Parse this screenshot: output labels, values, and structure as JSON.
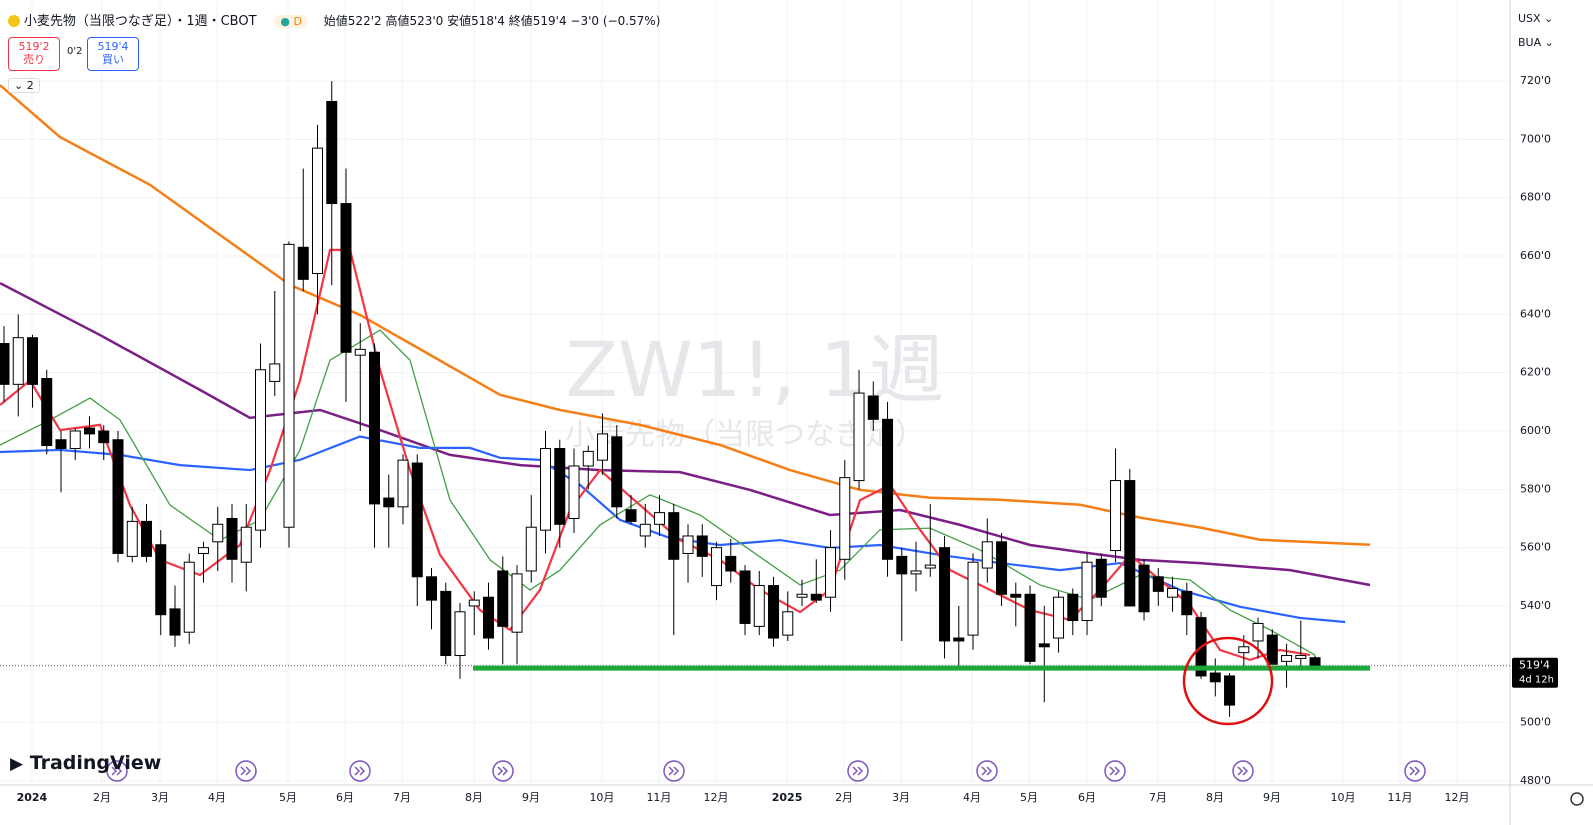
{
  "header": {
    "symbol": "小麦先物（当限つなぎ足）・1週・CBOT",
    "badge": "D",
    "ohlc": "始値522'2 高値523'0 安値518'4 終値519'4 −3'0 (−0.57%)",
    "sell": {
      "price": "519'2",
      "label": "売り"
    },
    "spread": "0'2",
    "buy": {
      "price": "519'4",
      "label": "買い"
    },
    "indicators": "2",
    "currency": "USX",
    "unit": "BUA",
    "brand": "TradingView"
  },
  "chart_data": {
    "type": "candlestick",
    "watermark": {
      "symbol": "ZW1!, 1週",
      "name": "小麦先物（当限つなぎ足）"
    },
    "x": [
      0,
      1,
      2,
      3,
      4,
      5,
      6,
      7,
      8,
      9,
      10,
      11,
      12,
      13,
      14,
      15,
      16,
      17,
      18,
      19,
      20,
      21,
      22,
      23,
      24,
      25,
      26,
      27,
      28,
      29,
      30,
      31,
      32,
      33,
      34,
      35,
      36,
      37,
      38,
      39,
      40,
      41,
      42,
      43,
      44,
      45,
      46,
      47,
      48,
      49,
      50,
      51,
      52,
      53,
      54,
      55,
      56,
      57,
      58,
      59,
      60,
      61,
      62,
      63,
      64,
      65,
      66,
      67,
      68,
      69,
      70,
      71,
      72,
      73,
      74,
      75,
      76,
      77,
      78,
      79,
      80,
      81,
      82,
      83,
      84,
      85,
      86,
      87,
      88,
      89,
      90,
      91,
      92
    ],
    "open": [
      630,
      616,
      632,
      618,
      597,
      594,
      601,
      600,
      597,
      557,
      569,
      561,
      539,
      531,
      558,
      562,
      570,
      555,
      566,
      617,
      567,
      663,
      654,
      713,
      678,
      626,
      627,
      577,
      574,
      589,
      550,
      545,
      523,
      540,
      543,
      552,
      531,
      552,
      566,
      594,
      570,
      588,
      590,
      598,
      573,
      564,
      568,
      572,
      558,
      564,
      547,
      557,
      552,
      533,
      547,
      530,
      543,
      544,
      543,
      556,
      583,
      612,
      604,
      557,
      551,
      553,
      560,
      529,
      530,
      553,
      562,
      544,
      544,
      527,
      529,
      544,
      535,
      556,
      559,
      583,
      554,
      550,
      543,
      545,
      536,
      517,
      516,
      524,
      528,
      530,
      521,
      522,
      522.25
    ],
    "high": [
      636,
      640,
      633,
      621,
      600,
      601,
      605,
      602,
      600,
      574,
      575,
      566,
      547,
      558,
      562,
      574,
      575,
      575,
      630,
      648,
      665,
      690,
      705,
      720,
      690,
      637,
      630,
      585,
      592,
      592,
      553,
      548,
      541,
      545,
      548,
      557,
      554,
      578,
      600,
      597,
      594,
      595,
      606,
      602,
      578,
      575,
      578,
      575,
      568,
      568,
      562,
      563,
      554,
      552,
      550,
      545,
      549,
      556,
      566,
      590,
      621,
      617,
      610,
      560,
      562,
      575,
      564,
      540,
      558,
      570,
      565,
      548,
      547,
      540,
      545,
      546,
      558,
      558,
      594,
      587,
      556,
      553,
      550,
      548,
      538,
      522,
      517,
      530,
      536,
      532,
      527,
      535,
      523
    ],
    "low": [
      610,
      605,
      608,
      592,
      579,
      590,
      594,
      590,
      555,
      555,
      555,
      530,
      526,
      527,
      548,
      552,
      548,
      545,
      560,
      612,
      560,
      648,
      640,
      650,
      610,
      600,
      560,
      560,
      568,
      540,
      532,
      520,
      515,
      530,
      525,
      520,
      520,
      548,
      558,
      560,
      565,
      580,
      585,
      570,
      568,
      560,
      564,
      530,
      548,
      550,
      542,
      548,
      530,
      530,
      526,
      528,
      540,
      541,
      538,
      549,
      580,
      600,
      550,
      528,
      545,
      550,
      522,
      518,
      525,
      548,
      540,
      533,
      520,
      507,
      524,
      530,
      530,
      540,
      555,
      540,
      535,
      540,
      538,
      530,
      515,
      509,
      502,
      518,
      522,
      520,
      512,
      518,
      518.5
    ],
    "close": [
      616,
      632,
      616,
      595,
      594,
      600,
      599,
      596,
      558,
      569,
      557,
      537,
      530,
      555,
      560,
      568,
      556,
      567,
      621,
      623,
      664,
      652,
      697,
      678,
      627,
      628,
      575,
      574,
      590,
      550,
      542,
      523,
      538,
      542,
      529,
      533,
      551,
      567,
      594,
      568,
      588,
      593,
      599,
      574,
      569,
      568,
      572,
      556,
      564,
      557,
      560,
      552,
      534,
      547,
      529,
      538,
      544,
      542,
      560,
      584,
      613,
      604,
      556,
      551,
      552,
      554,
      528,
      528,
      555,
      562,
      544,
      543,
      521,
      526,
      543,
      535,
      555,
      543,
      583,
      540,
      538,
      545,
      546,
      537,
      516,
      514,
      506,
      526,
      534,
      520,
      523,
      523,
      519.5
    ],
    "up_color": "#ffffff",
    "down_color": "#000000",
    "series": [
      {
        "color": "#f57f17",
        "x": [
          -0.28,
          3.93,
          10.25,
          15.16,
          20.07,
          24.98,
          29.9,
          34.81,
          39.02,
          44.63,
          50.25,
          55.16,
          60.07,
          64.98,
          69.89,
          75.51,
          79.72,
          83.93,
          88.14,
          95.86
        ],
        "values": [
          718.6,
          700.8,
          684.4,
          667.2,
          650.1,
          639.8,
          626.1,
          612.4,
          607.2,
          602.1,
          595.2,
          586.6,
          579.8,
          577.1,
          576.4,
          574.7,
          570.3,
          566.9,
          562.7,
          561
        ]
      },
      {
        "color": "#7b1f86",
        "x": [
          -0.28,
          6.74,
          13.75,
          17.26,
          22.18,
          26.39,
          31.3,
          36.21,
          41.82,
          47.44,
          52.35,
          57.96,
          62.88,
          67.09,
          72,
          75.51,
          79.72,
          83.93,
          90.25,
          95.86
        ],
        "values": [
          650.7,
          632.9,
          614.1,
          604.5,
          607.2,
          600.3,
          591.8,
          588.3,
          586.6,
          585.9,
          579.8,
          571.2,
          572.9,
          567.8,
          560.9,
          558.5,
          555.8,
          554.7,
          552.3,
          547.2
        ]
      },
      {
        "color": "#2962ff",
        "x": [
          -0.28,
          3.93,
          8.14,
          12.35,
          17.26,
          20.77,
          24.98,
          29.19,
          32.7,
          34.81,
          37.61,
          40.42,
          43.23,
          46.74,
          50.25,
          54.46,
          57.96,
          61.47,
          65.68,
          69.89,
          74.11,
          78.32,
          82.53,
          86.74,
          90.95,
          94.11
        ],
        "values": [
          592.8,
          593.5,
          591.8,
          588.3,
          586.6,
          590.1,
          598.1,
          594.2,
          594.2,
          590.8,
          590.1,
          581.5,
          569.5,
          563.3,
          560.9,
          562.6,
          559.9,
          560.9,
          557.5,
          554.7,
          552.3,
          554.7,
          545.5,
          539.7,
          535.9,
          534.5
        ]
      },
      {
        "color": "#43a047",
        "x": [
          -0.28,
          3.23,
          6.04,
          8.14,
          11.65,
          15.16,
          17.96,
          20.77,
          22.88,
          26.39,
          28.49,
          31.3,
          34.11,
          36.91,
          39.02,
          41.82,
          45.33,
          48.84,
          52.35,
          55.86,
          58.67,
          61.47,
          64.98,
          68.49,
          72.7,
          76.21,
          79.72,
          83.23,
          86.04,
          88.84,
          92
        ],
        "values": [
          595.2,
          603.8,
          611.3,
          603.8,
          574.6,
          562.6,
          569.5,
          593.5,
          624.3,
          634.6,
          624.3,
          576.3,
          555.8,
          545.5,
          552.3,
          567.8,
          578.1,
          571.2,
          559.2,
          547.2,
          552.3,
          566.1,
          566.7,
          559.2,
          547.2,
          542.1,
          550.6,
          548.9,
          538.6,
          531.8,
          523.2
        ]
      },
      {
        "color": "#f23645",
        "x": [
          -0.28,
          1.82,
          3.93,
          6.74,
          8.84,
          10.95,
          13.75,
          16.56,
          18.67,
          20.77,
          22.88,
          24.28,
          26.39,
          28.49,
          30.6,
          33.4,
          35.51,
          37.61,
          39.72,
          41.82,
          44.63,
          47.44,
          50.25,
          53.05,
          55.86,
          57.96,
          60.07,
          62.18,
          64.28,
          66.39,
          69.19,
          72,
          74.81,
          76.91,
          79.02,
          81.12,
          83.23,
          85.33,
          87.44,
          89.54,
          91.65
        ],
        "values": [
          608.9,
          617.3,
          600.3,
          602.1,
          574.6,
          555.8,
          550.6,
          560.9,
          586.6,
          617.3,
          662.1,
          662.1,
          620.9,
          586.6,
          557.5,
          538.6,
          531.8,
          545.5,
          572.9,
          586.6,
          574.6,
          562.6,
          555.8,
          545.5,
          537.9,
          545.5,
          576.3,
          581.5,
          566.1,
          552.3,
          545.5,
          538.6,
          535.2,
          545.5,
          557.5,
          548.9,
          540.3,
          524.9,
          521.5,
          524.9,
          523.2
        ]
      }
    ],
    "support": {
      "value": 518.7,
      "x": [
        32.91,
        95.86
      ],
      "color": "#1fa83a"
    },
    "last_price": {
      "value": 519.5,
      "label": "519'4",
      "countdown": "4d 12h"
    },
    "xlim": [
      -0.28,
      105.68
    ],
    "ylim": [
      478.6,
      747.8
    ],
    "yticks": [
      {
        "value": 480,
        "label": "480'0"
      },
      {
        "value": 500,
        "label": "500'0"
      },
      {
        "value": 520,
        "label": "520'0"
      },
      {
        "value": 540,
        "label": "540'0"
      },
      {
        "value": 560,
        "label": "560'0"
      },
      {
        "value": 580,
        "label": "580'0"
      },
      {
        "value": 600,
        "label": "600'0"
      },
      {
        "value": 620,
        "label": "620'0"
      },
      {
        "value": 640,
        "label": "640'0"
      },
      {
        "value": 660,
        "label": "660'0"
      },
      {
        "value": 680,
        "label": "680'0"
      },
      {
        "value": 700,
        "label": "700'0"
      },
      {
        "value": 720,
        "label": "720'0"
      }
    ],
    "xticks": [
      {
        "value": 1.96,
        "label": "2024"
      },
      {
        "value": 6.88,
        "label": "2月"
      },
      {
        "value": 10.95,
        "label": "3月"
      },
      {
        "value": 14.95,
        "label": "4月"
      },
      {
        "value": 19.93,
        "label": "5月"
      },
      {
        "value": 23.93,
        "label": "6月"
      },
      {
        "value": 27.93,
        "label": "7月"
      },
      {
        "value": 32.98,
        "label": "8月"
      },
      {
        "value": 36.98,
        "label": "9月"
      },
      {
        "value": 41.96,
        "label": "10月"
      },
      {
        "value": 45.96,
        "label": "11月"
      },
      {
        "value": 49.96,
        "label": "12月"
      },
      {
        "value": 54.95,
        "label": "2025"
      },
      {
        "value": 58.95,
        "label": "2月"
      },
      {
        "value": 62.95,
        "label": "3月"
      },
      {
        "value": 67.93,
        "label": "4月"
      },
      {
        "value": 71.93,
        "label": "5月"
      },
      {
        "value": 76,
        "label": "6月"
      },
      {
        "value": 80.98,
        "label": "7月"
      },
      {
        "value": 84.98,
        "label": "8月"
      },
      {
        "value": 88.98,
        "label": "9月"
      },
      {
        "value": 93.96,
        "label": "10月"
      },
      {
        "value": 97.96,
        "label": "11月"
      },
      {
        "value": 101.96,
        "label": "12月"
      }
    ],
    "grid": true
  }
}
